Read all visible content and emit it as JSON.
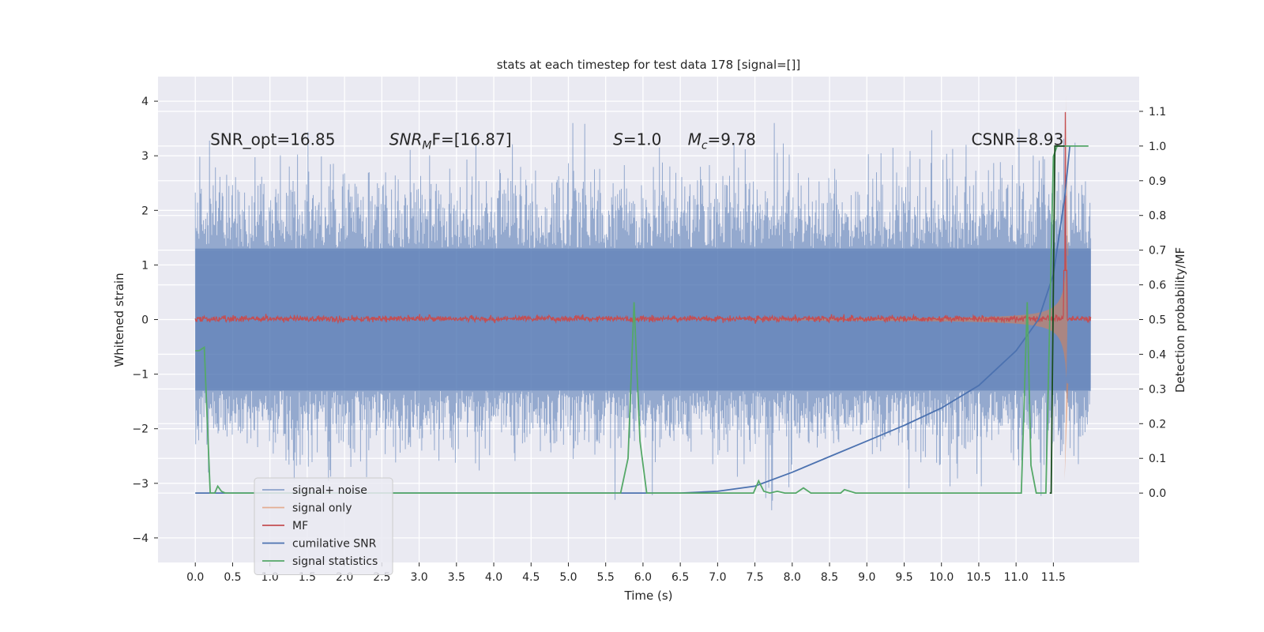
{
  "chart_data": {
    "type": "line",
    "title": "stats at each timestep for test data 178 [signal=[]]",
    "xlabel": "Time (s)",
    "ylabel": "Whitened strain",
    "ylabel_right": "Detection probability/MF",
    "xlim": [
      -0.5,
      12.65
    ],
    "ylim": [
      -4.45,
      4.45
    ],
    "ylim_right": [
      -0.2,
      1.2
    ],
    "x_ticks": [
      "0.0",
      "0.5",
      "1.0",
      "1.5",
      "2.0",
      "2.5",
      "3.0",
      "3.5",
      "4.0",
      "4.5",
      "5.0",
      "5.5",
      "6.0",
      "6.5",
      "7.0",
      "7.5",
      "8.0",
      "8.5",
      "9.0",
      "9.5",
      "10.0",
      "10.5",
      "11.0",
      "11.5"
    ],
    "y_ticks": [
      "4",
      "3",
      "2",
      "1",
      "0",
      "−1",
      "−2",
      "−3",
      "−4"
    ],
    "y_ticks_right": [
      "1.1",
      "1.0",
      "0.9",
      "0.8",
      "0.7",
      "0.6",
      "0.5",
      "0.4",
      "0.3",
      "0.2",
      "0.1",
      "0.0"
    ],
    "grid": true,
    "legend_position": "bottom-left",
    "annotations": [
      {
        "text": "SNR_opt=16.85",
        "x": 0.2,
        "y": 3.3
      },
      {
        "text_prefix": "SNR",
        "text_sub": "M",
        "text_suffix": "F=[16.87]",
        "x": 2.6,
        "y": 3.3
      },
      {
        "text_prefix": "S",
        "text_suffix": "=1.0",
        "x": 5.6,
        "y": 3.3
      },
      {
        "text_prefix": "M",
        "text_sub": "c",
        "text_suffix": "=9.78",
        "x": 6.6,
        "y": 3.3
      },
      {
        "text": "CSNR=8.93",
        "x": 10.4,
        "y": 3.3
      }
    ],
    "series": [
      {
        "name": "signal+ noise",
        "color": "#4c72b0",
        "axis": "left",
        "style": "noise",
        "x_range": [
          0.0,
          12.0
        ],
        "envelope": [
          -2.4,
          2.6
        ],
        "min": -3.9,
        "max": 3.6
      },
      {
        "name": "signal only",
        "color": "#dd8452",
        "axis": "left",
        "style": "chirp",
        "x_range": [
          0.0,
          11.7
        ],
        "peak": 4.1,
        "trough": -2.95,
        "peak_x": 11.67
      },
      {
        "name": "MF",
        "color": "#c44e52",
        "axis": "left",
        "style": "noise",
        "x_range": [
          0.0,
          12.0
        ],
        "envelope": [
          -0.05,
          0.08
        ],
        "spike_x": 11.66,
        "spike_y": 3.8
      },
      {
        "name": "cumilative SNR",
        "color": "#4c72b0",
        "axis": "right",
        "x": [
          0.0,
          6.5,
          7.0,
          7.5,
          8.0,
          8.5,
          9.0,
          9.5,
          10.0,
          10.5,
          11.0,
          11.3,
          11.5,
          11.65,
          11.72
        ],
        "y": [
          0.0,
          0.0,
          0.005,
          0.02,
          0.06,
          0.105,
          0.15,
          0.195,
          0.245,
          0.31,
          0.41,
          0.5,
          0.63,
          0.85,
          1.0
        ]
      },
      {
        "name": "signal statistics",
        "color": "#55a868",
        "axis": "right",
        "x": [
          0.0,
          0.05,
          0.12,
          0.2,
          0.26,
          0.3,
          0.35,
          0.4,
          0.5,
          5.7,
          5.8,
          5.88,
          5.96,
          6.05,
          6.1,
          6.6,
          7.48,
          7.55,
          7.62,
          7.7,
          7.8,
          7.9,
          8.05,
          8.15,
          8.25,
          8.3,
          8.65,
          8.7,
          8.85,
          11.07,
          11.15,
          11.2,
          11.27,
          11.4,
          11.5,
          11.55,
          11.62,
          11.75,
          11.97
        ],
        "y": [
          0.41,
          0.41,
          0.42,
          0.0,
          0.0,
          0.02,
          0.005,
          0.0,
          0.0,
          0.0,
          0.1,
          0.55,
          0.15,
          0.0,
          0.0,
          0.0,
          0.0,
          0.035,
          0.005,
          0.0,
          0.005,
          0.0,
          0.0,
          0.015,
          0.0,
          0.0,
          0.0,
          0.01,
          0.0,
          0.0,
          0.55,
          0.08,
          0.0,
          0.0,
          0.97,
          1.0,
          1.0,
          1.0,
          1.0
        ]
      },
      {
        "name": "",
        "color": "#1a4d1f",
        "axis": "right",
        "x": [
          11.45,
          11.47,
          11.52,
          11.65
        ],
        "y": [
          0.0,
          0.0,
          1.0,
          1.0
        ]
      }
    ]
  }
}
